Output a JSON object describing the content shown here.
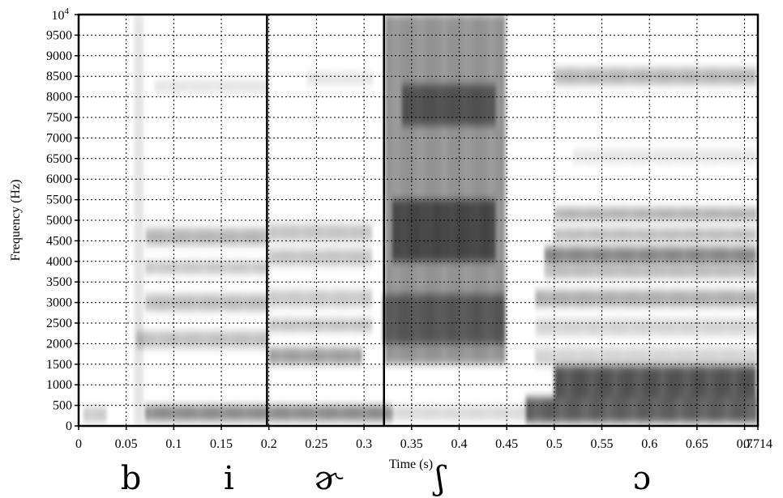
{
  "chart_data": {
    "type": "heatmap",
    "subtype": "spectrogram",
    "xlabel": "Time (s)",
    "ylabel": "Frequency (Hz)",
    "xlim": [
      0,
      0.714
    ],
    "ylim": [
      0,
      10000
    ],
    "grid": true,
    "grid_style": "dotted",
    "colormap": "grayscale",
    "x_ticks": [
      0,
      0.05,
      0.1,
      0.15,
      0.2,
      0.25,
      0.3,
      0.35,
      0.4,
      0.45,
      0.5,
      0.55,
      0.6,
      0.65,
      0.7
    ],
    "x_tick_labels": [
      "0",
      "0.05",
      "0.1",
      "0.15",
      "0.2",
      "0.25",
      "0.3",
      "0.35",
      "0.4",
      "0.45",
      "0.5",
      "0.55",
      "0.6",
      "0.65",
      "0.7"
    ],
    "x_end_label": "0.714",
    "y_ticks": [
      0,
      500,
      1000,
      1500,
      2000,
      2500,
      3000,
      3500,
      4000,
      4500,
      5000,
      5500,
      6000,
      6500,
      7000,
      7500,
      8000,
      8500,
      9000,
      9500
    ],
    "y_tick_labels": [
      "0",
      "500",
      "1000",
      "1500",
      "2000",
      "2500",
      "3000",
      "3500",
      "4000",
      "4500",
      "5000",
      "5500",
      "6000",
      "6500",
      "7000",
      "7500",
      "8000",
      "8500",
      "9000",
      "9500"
    ],
    "y_top_label": {
      "base": "10",
      "exponent": "4"
    },
    "segment_boundaries": [
      0.198,
      0.321
    ],
    "segments": [
      {
        "label": "b",
        "time": 0.055
      },
      {
        "label": "i",
        "time": 0.158
      },
      {
        "label": "ɚ",
        "time": 0.262
      },
      {
        "label": "ʃ",
        "time": 0.38
      },
      {
        "label": "ɔ",
        "time": 0.592
      }
    ],
    "energy_regions": [
      {
        "t0": 0.005,
        "t1": 0.03,
        "f0": 100,
        "f1": 450,
        "level": 0.28
      },
      {
        "t0": 0.058,
        "t1": 0.07,
        "f0": 0,
        "f1": 10000,
        "level": 0.14
      },
      {
        "t0": 0.07,
        "t1": 0.33,
        "f0": 120,
        "f1": 500,
        "level": 0.6
      },
      {
        "t0": 0.33,
        "t1": 0.47,
        "f0": 150,
        "f1": 480,
        "level": 0.2
      },
      {
        "t0": 0.06,
        "t1": 0.2,
        "f0": 1900,
        "f1": 2300,
        "level": 0.32
      },
      {
        "t0": 0.07,
        "t1": 0.2,
        "f0": 2800,
        "f1": 3200,
        "level": 0.34
      },
      {
        "t0": 0.07,
        "t1": 0.2,
        "f0": 3700,
        "f1": 4000,
        "level": 0.3
      },
      {
        "t0": 0.07,
        "t1": 0.2,
        "f0": 4400,
        "f1": 4800,
        "level": 0.38
      },
      {
        "t0": 0.08,
        "t1": 0.2,
        "f0": 8100,
        "f1": 8400,
        "level": 0.14
      },
      {
        "t0": 0.2,
        "t1": 0.3,
        "f0": 1500,
        "f1": 1900,
        "level": 0.5
      },
      {
        "t0": 0.2,
        "t1": 0.31,
        "f0": 2300,
        "f1": 2600,
        "level": 0.32
      },
      {
        "t0": 0.2,
        "t1": 0.31,
        "f0": 2900,
        "f1": 3300,
        "level": 0.28
      },
      {
        "t0": 0.2,
        "t1": 0.31,
        "f0": 3900,
        "f1": 4300,
        "level": 0.3
      },
      {
        "t0": 0.2,
        "t1": 0.31,
        "f0": 4500,
        "f1": 4900,
        "level": 0.3
      },
      {
        "t0": 0.24,
        "t1": 0.31,
        "f0": 8300,
        "f1": 8600,
        "level": 0.14
      },
      {
        "t0": 0.322,
        "t1": 0.45,
        "f0": 1500,
        "f1": 10000,
        "level": 0.55
      },
      {
        "t0": 0.33,
        "t1": 0.44,
        "f0": 4000,
        "f1": 5500,
        "level": 0.72
      },
      {
        "t0": 0.34,
        "t1": 0.44,
        "f0": 7300,
        "f1": 8300,
        "level": 0.6
      },
      {
        "t0": 0.32,
        "t1": 0.45,
        "f0": 2000,
        "f1": 3200,
        "level": 0.58
      },
      {
        "t0": 0.47,
        "t1": 0.714,
        "f0": 80,
        "f1": 700,
        "level": 0.82
      },
      {
        "t0": 0.5,
        "t1": 0.714,
        "f0": 700,
        "f1": 1450,
        "level": 0.88
      },
      {
        "t0": 0.48,
        "t1": 0.714,
        "f0": 1450,
        "f1": 1900,
        "level": 0.22
      },
      {
        "t0": 0.48,
        "t1": 0.714,
        "f0": 2200,
        "f1": 2600,
        "level": 0.22
      },
      {
        "t0": 0.48,
        "t1": 0.714,
        "f0": 2900,
        "f1": 3300,
        "level": 0.42
      },
      {
        "t0": 0.49,
        "t1": 0.714,
        "f0": 3600,
        "f1": 3900,
        "level": 0.36
      },
      {
        "t0": 0.49,
        "t1": 0.714,
        "f0": 3950,
        "f1": 4350,
        "level": 0.62
      },
      {
        "t0": 0.5,
        "t1": 0.714,
        "f0": 4500,
        "f1": 4800,
        "level": 0.36
      },
      {
        "t0": 0.5,
        "t1": 0.714,
        "f0": 5000,
        "f1": 5300,
        "level": 0.42
      },
      {
        "t0": 0.52,
        "t1": 0.714,
        "f0": 6400,
        "f1": 6700,
        "level": 0.14
      },
      {
        "t0": 0.5,
        "t1": 0.714,
        "f0": 8300,
        "f1": 8700,
        "level": 0.38
      }
    ]
  }
}
